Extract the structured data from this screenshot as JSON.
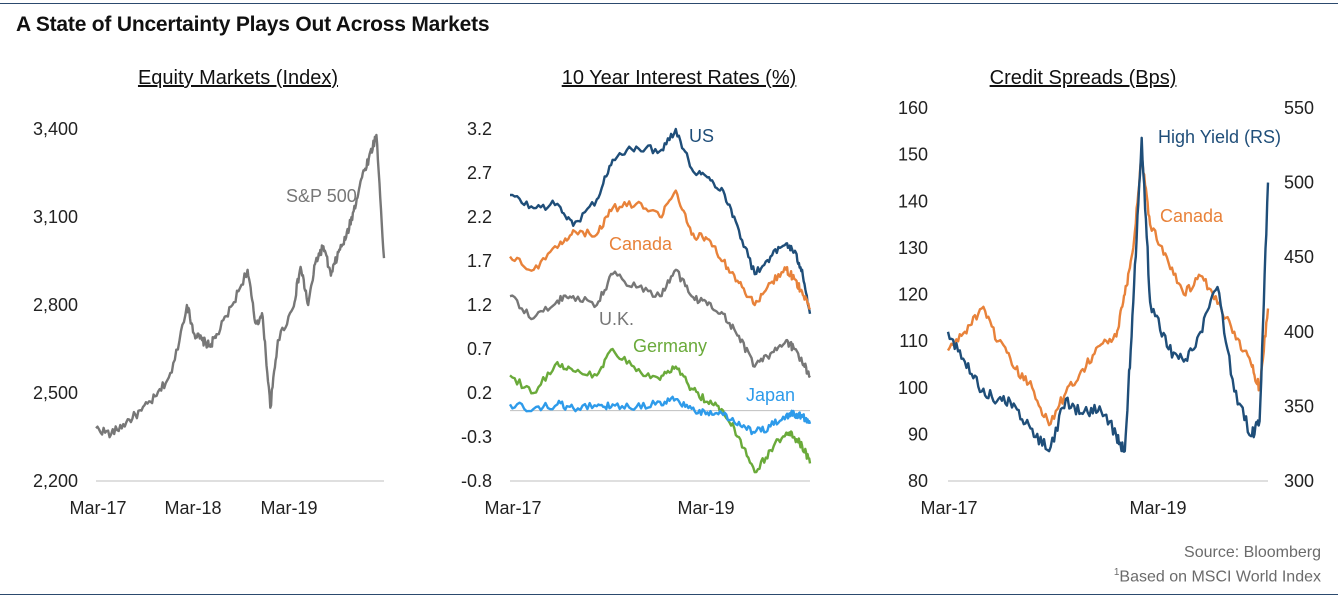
{
  "title": "A State of Uncertainty Plays Out Across Markets",
  "source": "Source: Bloomberg",
  "footnote_mark": "1",
  "footnote": "Based on MSCI World Index",
  "colors": {
    "navy": "#1f4e79",
    "orange": "#e8823a",
    "gray": "#777777",
    "green": "#6aaa3a",
    "blue": "#2e9bea"
  },
  "chart_data": [
    {
      "type": "line",
      "title": "Equity Markets (Index)",
      "x_ticks": [
        "Mar-17",
        "Mar-18",
        "Mar-19"
      ],
      "y_ticks": [
        "2,200",
        "2,500",
        "2,800",
        "3,100",
        "3,400"
      ],
      "ylim": [
        2200,
        3500
      ],
      "xlim": [
        "2017-01",
        "2020-03"
      ],
      "grid": false,
      "series": [
        {
          "name": "S&P 500",
          "color": "#777777",
          "x": [
            "2017-01",
            "2017-03",
            "2017-05",
            "2017-07",
            "2017-09",
            "2017-11",
            "2018-01",
            "2018-02",
            "2018-03",
            "2018-04",
            "2018-05",
            "2018-07",
            "2018-09",
            "2018-10",
            "2018-11",
            "2018-12",
            "2019-01",
            "2019-03",
            "2019-04",
            "2019-05",
            "2019-06",
            "2019-07",
            "2019-08",
            "2019-09",
            "2019-10",
            "2019-11",
            "2019-12",
            "2020-01",
            "2020-02",
            "2020-03"
          ],
          "values": [
            2380,
            2360,
            2400,
            2440,
            2490,
            2570,
            2800,
            2700,
            2680,
            2660,
            2700,
            2800,
            2920,
            2740,
            2760,
            2450,
            2680,
            2790,
            2930,
            2800,
            2950,
            3000,
            2900,
            2980,
            3030,
            3120,
            3230,
            3300,
            3380,
            2960
          ]
        }
      ]
    },
    {
      "type": "line",
      "title": "10 Year Interest Rates (%)",
      "x_ticks": [
        "Mar-17",
        "Mar-19"
      ],
      "y_ticks": [
        "3.2",
        "2.7",
        "2.2",
        "1.7",
        "1.2",
        "0.7",
        "0.2",
        "-0.3",
        "-0.8"
      ],
      "ylim": [
        -0.8,
        3.4
      ],
      "xlim": [
        "2017-01",
        "2020-03"
      ],
      "reference_line": 0,
      "grid": false,
      "series": [
        {
          "name": "US",
          "color": "#1f4e79",
          "x": [
            "2017-01",
            "2017-04",
            "2017-07",
            "2017-09",
            "2017-12",
            "2018-02",
            "2018-05",
            "2018-08",
            "2018-10",
            "2018-12",
            "2019-02",
            "2019-04",
            "2019-06",
            "2019-08",
            "2019-10",
            "2019-12",
            "2020-01",
            "2020-02",
            "2020-03"
          ],
          "values": [
            2.45,
            2.3,
            2.35,
            2.1,
            2.4,
            2.85,
            3.0,
            2.95,
            3.2,
            2.75,
            2.65,
            2.5,
            2.05,
            1.55,
            1.75,
            1.9,
            1.8,
            1.6,
            1.1
          ]
        },
        {
          "name": "Canada",
          "color": "#e8823a",
          "x": [
            "2017-01",
            "2017-04",
            "2017-07",
            "2017-09",
            "2017-12",
            "2018-02",
            "2018-05",
            "2018-08",
            "2018-10",
            "2018-12",
            "2019-02",
            "2019-04",
            "2019-06",
            "2019-08",
            "2019-10",
            "2019-12",
            "2020-01",
            "2020-02",
            "2020-03"
          ],
          "values": [
            1.75,
            1.6,
            1.85,
            2.05,
            2.0,
            2.3,
            2.35,
            2.2,
            2.5,
            2.0,
            1.95,
            1.7,
            1.45,
            1.2,
            1.45,
            1.6,
            1.5,
            1.35,
            1.15
          ]
        },
        {
          "name": "U.K.",
          "color": "#777777",
          "x": [
            "2017-01",
            "2017-04",
            "2017-07",
            "2017-09",
            "2017-12",
            "2018-02",
            "2018-05",
            "2018-08",
            "2018-10",
            "2018-12",
            "2019-02",
            "2019-04",
            "2019-06",
            "2019-08",
            "2019-10",
            "2019-12",
            "2020-01",
            "2020-02",
            "2020-03"
          ],
          "values": [
            1.3,
            1.05,
            1.25,
            1.3,
            1.2,
            1.55,
            1.4,
            1.3,
            1.6,
            1.3,
            1.2,
            1.1,
            0.85,
            0.5,
            0.65,
            0.8,
            0.7,
            0.55,
            0.4
          ]
        },
        {
          "name": "Germany",
          "color": "#6aaa3a",
          "x": [
            "2017-01",
            "2017-04",
            "2017-07",
            "2017-09",
            "2017-12",
            "2018-02",
            "2018-05",
            "2018-08",
            "2018-10",
            "2018-12",
            "2019-02",
            "2019-04",
            "2019-06",
            "2019-08",
            "2019-10",
            "2019-12",
            "2020-01",
            "2020-02",
            "2020-03"
          ],
          "values": [
            0.4,
            0.2,
            0.55,
            0.45,
            0.4,
            0.7,
            0.45,
            0.35,
            0.5,
            0.25,
            0.1,
            0.0,
            -0.3,
            -0.7,
            -0.45,
            -0.25,
            -0.3,
            -0.4,
            -0.6
          ]
        },
        {
          "name": "Japan",
          "color": "#2e9bea",
          "x": [
            "2017-01",
            "2017-04",
            "2017-07",
            "2017-09",
            "2017-12",
            "2018-02",
            "2018-05",
            "2018-08",
            "2018-10",
            "2018-12",
            "2019-02",
            "2019-04",
            "2019-06",
            "2019-08",
            "2019-10",
            "2019-12",
            "2020-01",
            "2020-02",
            "2020-03"
          ],
          "values": [
            0.07,
            0.02,
            0.07,
            0.03,
            0.05,
            0.07,
            0.04,
            0.1,
            0.13,
            0.02,
            -0.02,
            -0.05,
            -0.13,
            -0.25,
            -0.18,
            -0.05,
            -0.04,
            -0.05,
            -0.15
          ]
        }
      ]
    },
    {
      "type": "line",
      "title": "Credit Spreads (Bps)",
      "x_ticks": [
        "Mar-17",
        "Mar-19"
      ],
      "y_ticks_left": [
        "160",
        "150",
        "140",
        "130",
        "120",
        "110",
        "100",
        "90",
        "80"
      ],
      "y_ticks_right": [
        "550",
        "500",
        "450",
        "400",
        "350",
        "300"
      ],
      "ylim_left": [
        80,
        160
      ],
      "ylim_right": [
        300,
        550
      ],
      "xlim": [
        "2017-01",
        "2020-03"
      ],
      "grid": false,
      "series": [
        {
          "name": "Canada",
          "axis": "left",
          "color": "#e8823a",
          "x": [
            "2017-01",
            "2017-03",
            "2017-05",
            "2017-07",
            "2017-09",
            "2017-11",
            "2018-01",
            "2018-03",
            "2018-05",
            "2018-07",
            "2018-09",
            "2018-10",
            "2018-11",
            "2018-12",
            "2019-01",
            "2019-03",
            "2019-05",
            "2019-07",
            "2019-09",
            "2019-11",
            "2020-01",
            "2020-02",
            "2020-03"
          ],
          "values": [
            108,
            112,
            117,
            110,
            104,
            100,
            92,
            99,
            104,
            109,
            111,
            120,
            130,
            150,
            135,
            128,
            120,
            124,
            118,
            112,
            105,
            100,
            117
          ]
        },
        {
          "name": "High Yield (RS)",
          "axis": "right",
          "color": "#1f4e79",
          "x": [
            "2017-01",
            "2017-03",
            "2017-05",
            "2017-07",
            "2017-09",
            "2017-11",
            "2018-01",
            "2018-03",
            "2018-05",
            "2018-07",
            "2018-09",
            "2018-10",
            "2018-11",
            "2018-12",
            "2019-01",
            "2019-03",
            "2019-05",
            "2019-07",
            "2019-09",
            "2019-11",
            "2020-01",
            "2020-02",
            "2020-03"
          ],
          "values": [
            400,
            380,
            360,
            355,
            350,
            335,
            320,
            355,
            345,
            350,
            330,
            320,
            420,
            530,
            420,
            390,
            380,
            400,
            430,
            360,
            330,
            340,
            500
          ]
        }
      ]
    }
  ]
}
